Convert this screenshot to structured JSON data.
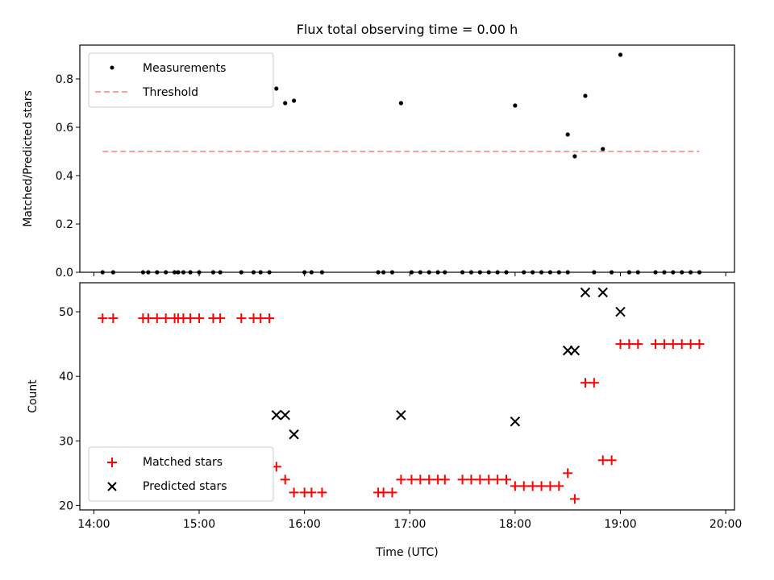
{
  "chart_data": [
    {
      "type": "scatter",
      "title": "Flux total observing time = 0.00 h",
      "ylabel": "Matched/Predicted stars",
      "xlabel": "",
      "xlim": [
        "13:52",
        "20:05"
      ],
      "ylim": [
        0,
        0.94
      ],
      "grid": false,
      "legend_position": "top-left",
      "x_ticks": [
        "14:00",
        "15:00",
        "16:00",
        "17:00",
        "18:00",
        "19:00",
        "20:00"
      ],
      "y_ticks": [
        0.0,
        0.2,
        0.4,
        0.6,
        0.8
      ],
      "y_tick_labels": [
        "0.0",
        "0.2",
        "0.4",
        "0.6",
        "0.8"
      ],
      "series": [
        {
          "name": "Measurements",
          "marker": "dot",
          "color": "#000000",
          "points": [
            [
              "14:05",
              0
            ],
            [
              "14:11",
              0
            ],
            [
              "14:28",
              0
            ],
            [
              "14:31",
              0
            ],
            [
              "14:36",
              0
            ],
            [
              "14:41",
              0
            ],
            [
              "14:46",
              0
            ],
            [
              "14:48",
              0
            ],
            [
              "14:51",
              0
            ],
            [
              "14:55",
              0
            ],
            [
              "15:00",
              0
            ],
            [
              "15:08",
              0
            ],
            [
              "15:12",
              0
            ],
            [
              "15:24",
              0
            ],
            [
              "15:31",
              0
            ],
            [
              "15:35",
              0
            ],
            [
              "15:40",
              0
            ],
            [
              "15:44",
              0.76
            ],
            [
              "15:49",
              0.7
            ],
            [
              "15:54",
              0.71
            ],
            [
              "16:00",
              0
            ],
            [
              "16:04",
              0
            ],
            [
              "16:10",
              0
            ],
            [
              "16:42",
              0
            ],
            [
              "16:45",
              0
            ],
            [
              "16:50",
              0
            ],
            [
              "16:55",
              0.7
            ],
            [
              "17:01",
              0
            ],
            [
              "17:06",
              0
            ],
            [
              "17:11",
              0
            ],
            [
              "17:16",
              0
            ],
            [
              "17:20",
              0
            ],
            [
              "17:30",
              0
            ],
            [
              "17:35",
              0
            ],
            [
              "17:40",
              0
            ],
            [
              "17:45",
              0
            ],
            [
              "17:50",
              0
            ],
            [
              "17:55",
              0
            ],
            [
              "18:00",
              0.69
            ],
            [
              "18:05",
              0
            ],
            [
              "18:10",
              0
            ],
            [
              "18:15",
              0
            ],
            [
              "18:20",
              0
            ],
            [
              "18:25",
              0
            ],
            [
              "18:30",
              0
            ],
            [
              "18:30",
              0.57
            ],
            [
              "18:34",
              0.48
            ],
            [
              "18:40",
              0.73
            ],
            [
              "18:45",
              0
            ],
            [
              "18:50",
              0.51
            ],
            [
              "18:55",
              0
            ],
            [
              "19:00",
              0.9
            ],
            [
              "19:05",
              0
            ],
            [
              "19:10",
              0
            ],
            [
              "19:20",
              0
            ],
            [
              "19:25",
              0
            ],
            [
              "19:30",
              0
            ],
            [
              "19:35",
              0
            ],
            [
              "19:40",
              0
            ],
            [
              "19:45",
              0
            ]
          ]
        },
        {
          "name": "Threshold",
          "style": "dashed",
          "color": "#ff7f7f",
          "points": [
            [
              "14:05",
              0.5
            ],
            [
              "19:45",
              0.5
            ]
          ]
        }
      ]
    },
    {
      "type": "scatter",
      "title": "",
      "ylabel": "Count",
      "xlabel": "Time (UTC)",
      "xlim": [
        "13:52",
        "20:05"
      ],
      "ylim": [
        19.3,
        54.5
      ],
      "grid": false,
      "legend_position": "bottom-left",
      "x_ticks": [
        "14:00",
        "15:00",
        "16:00",
        "17:00",
        "18:00",
        "19:00",
        "20:00"
      ],
      "y_ticks": [
        20,
        30,
        40,
        50
      ],
      "series": [
        {
          "name": "Matched stars",
          "marker": "plus",
          "color": "#ff0000",
          "points": [
            [
              "14:05",
              49
            ],
            [
              "14:11",
              49
            ],
            [
              "14:28",
              49
            ],
            [
              "14:31",
              49
            ],
            [
              "14:36",
              49
            ],
            [
              "14:41",
              49
            ],
            [
              "14:46",
              49
            ],
            [
              "14:48",
              49
            ],
            [
              "14:51",
              49
            ],
            [
              "14:55",
              49
            ],
            [
              "15:00",
              49
            ],
            [
              "15:08",
              49
            ],
            [
              "15:12",
              49
            ],
            [
              "15:24",
              49
            ],
            [
              "15:31",
              49
            ],
            [
              "15:35",
              49
            ],
            [
              "15:40",
              49
            ],
            [
              "15:44",
              26
            ],
            [
              "15:49",
              24
            ],
            [
              "15:54",
              22
            ],
            [
              "16:00",
              22
            ],
            [
              "16:04",
              22
            ],
            [
              "16:10",
              22
            ],
            [
              "16:42",
              22
            ],
            [
              "16:45",
              22
            ],
            [
              "16:50",
              22
            ],
            [
              "16:55",
              24
            ],
            [
              "17:01",
              24
            ],
            [
              "17:06",
              24
            ],
            [
              "17:11",
              24
            ],
            [
              "17:16",
              24
            ],
            [
              "17:20",
              24
            ],
            [
              "17:30",
              24
            ],
            [
              "17:35",
              24
            ],
            [
              "17:40",
              24
            ],
            [
              "17:45",
              24
            ],
            [
              "17:50",
              24
            ],
            [
              "17:55",
              24
            ],
            [
              "18:00",
              23
            ],
            [
              "18:05",
              23
            ],
            [
              "18:10",
              23
            ],
            [
              "18:15",
              23
            ],
            [
              "18:20",
              23
            ],
            [
              "18:25",
              23
            ],
            [
              "18:30",
              25
            ],
            [
              "18:34",
              21
            ],
            [
              "18:40",
              39
            ],
            [
              "18:45",
              39
            ],
            [
              "18:50",
              27
            ],
            [
              "18:55",
              27
            ],
            [
              "19:00",
              45
            ],
            [
              "19:05",
              45
            ],
            [
              "19:10",
              45
            ],
            [
              "19:20",
              45
            ],
            [
              "19:25",
              45
            ],
            [
              "19:30",
              45
            ],
            [
              "19:35",
              45
            ],
            [
              "19:40",
              45
            ],
            [
              "19:45",
              45
            ]
          ]
        },
        {
          "name": "Predicted stars",
          "marker": "x",
          "color": "#000000",
          "points": [
            [
              "15:44",
              34
            ],
            [
              "15:49",
              34
            ],
            [
              "15:54",
              31
            ],
            [
              "16:55",
              34
            ],
            [
              "18:00",
              33
            ],
            [
              "18:30",
              44
            ],
            [
              "18:34",
              44
            ],
            [
              "18:40",
              53
            ],
            [
              "18:50",
              53
            ],
            [
              "19:00",
              50
            ]
          ]
        }
      ]
    }
  ]
}
